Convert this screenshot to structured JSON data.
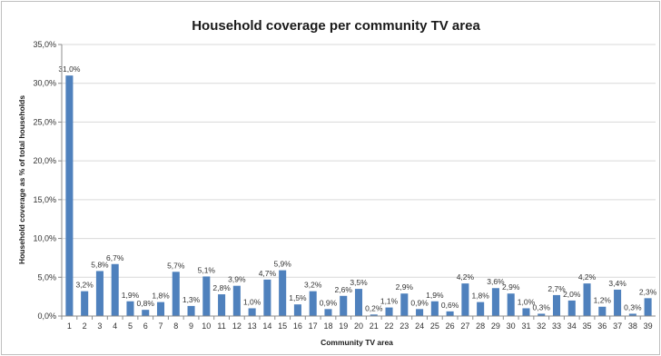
{
  "chart_data": {
    "type": "bar",
    "title": "Household coverage per community TV area",
    "xlabel": "Community TV area",
    "ylabel": "Household coverage as % of total households",
    "categories": [
      "1",
      "2",
      "3",
      "4",
      "5",
      "6",
      "7",
      "8",
      "9",
      "10",
      "11",
      "12",
      "13",
      "14",
      "15",
      "16",
      "17",
      "18",
      "19",
      "20",
      "21",
      "22",
      "23",
      "24",
      "25",
      "26",
      "27",
      "28",
      "29",
      "30",
      "31",
      "32",
      "33",
      "34",
      "35",
      "36",
      "37",
      "38",
      "39"
    ],
    "values": [
      31.0,
      3.2,
      5.8,
      6.7,
      1.9,
      0.8,
      1.8,
      5.7,
      1.3,
      5.1,
      2.8,
      3.9,
      1.0,
      4.7,
      5.9,
      1.5,
      3.2,
      0.9,
      2.6,
      3.5,
      0.2,
      1.1,
      2.9,
      0.9,
      1.9,
      0.6,
      4.2,
      1.8,
      3.6,
      2.9,
      1.0,
      0.3,
      2.7,
      2.0,
      4.2,
      1.2,
      3.4,
      0.3,
      2.3
    ],
    "data_labels": [
      "31,0%",
      "3,2%",
      "5,8%",
      "6,7%",
      "1,9%",
      "0,8%",
      "1,8%",
      "5,7%",
      "1,3%",
      "5,1%",
      "2,8%",
      "3,9%",
      "1,0%",
      "4,7%",
      "5,9%",
      "1,5%",
      "3,2%",
      "0,9%",
      "2,6%",
      "3,5%",
      "0,2%",
      "1,1%",
      "2,9%",
      "0,9%",
      "1,9%",
      "0,6%",
      "4,2%",
      "1,8%",
      "3,6%",
      "2,9%",
      "1,0%",
      "0,3%",
      "2,7%",
      "2,0%",
      "4,2%",
      "1,2%",
      "3,4%",
      "0,3%",
      "2,3%"
    ],
    "ylim": [
      0,
      35
    ],
    "yticks": [
      0,
      5,
      10,
      15,
      20,
      25,
      30,
      35
    ],
    "ytick_labels": [
      "0,0%",
      "5,0%",
      "10,0%",
      "15,0%",
      "20,0%",
      "25,0%",
      "30,0%",
      "35,0%"
    ],
    "grid": true,
    "legend": "none",
    "bar_color": "#4f81bd"
  }
}
